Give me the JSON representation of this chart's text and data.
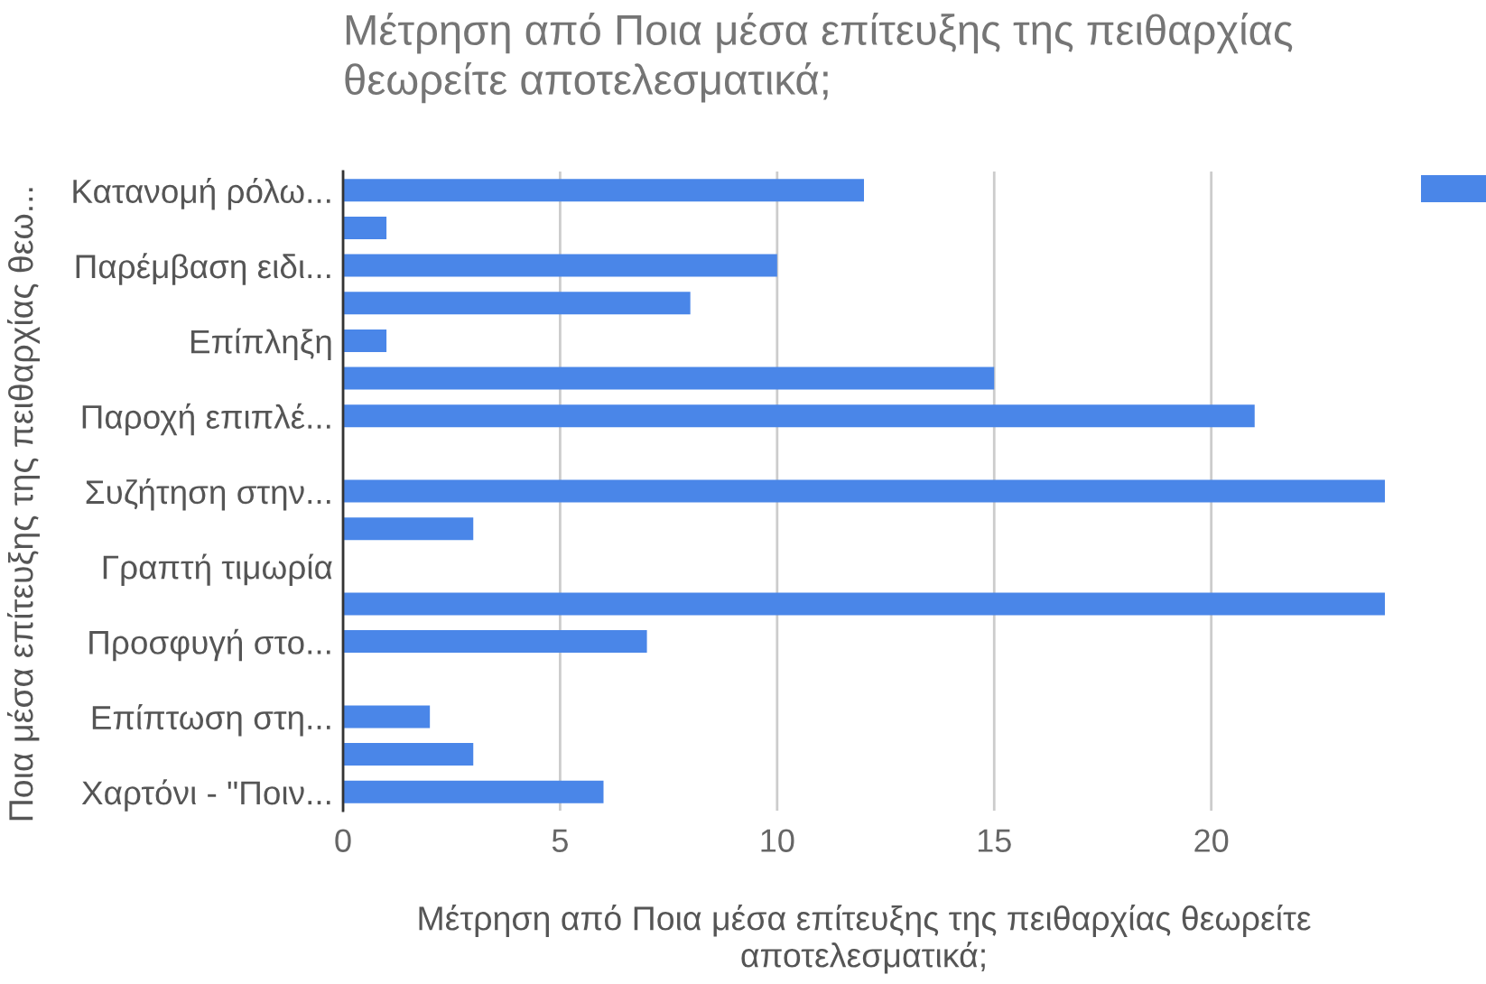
{
  "chart_data": {
    "type": "bar",
    "orientation": "horizontal",
    "title": "Μέτρηση από Ποια μέσα επίτευξης της πειθαρχίας θεωρείτε αποτελεσματικά;",
    "xlabel": "Μέτρηση από Ποια μέσα επίτευξης της πειθαρχίας θεωρείτε αποτελεσματικά;",
    "ylabel": "Ποια μέσα επίτευξης της πειθαρχίας θεω...",
    "categories": [
      "Κατανομή ρόλω...",
      null,
      "Παρέμβαση ειδι...",
      null,
      "Επίπληξη",
      null,
      "Παροχή επιπλέ...",
      null,
      "Συζήτηση στην...",
      null,
      "Γραπτή τιμωρία",
      null,
      "Προσφυγή στο...",
      null,
      "Επίπτωση στη...",
      null,
      "Χαρτόνι - \"Ποιν..."
    ],
    "values": [
      12,
      1,
      10,
      8,
      1,
      15,
      21,
      0,
      24,
      3,
      0,
      24,
      7,
      0,
      2,
      3,
      6
    ],
    "color": "#4a86e8",
    "xlim": [
      0,
      24
    ],
    "xticks": [
      0,
      5,
      10,
      15,
      20
    ],
    "grid": "x"
  }
}
